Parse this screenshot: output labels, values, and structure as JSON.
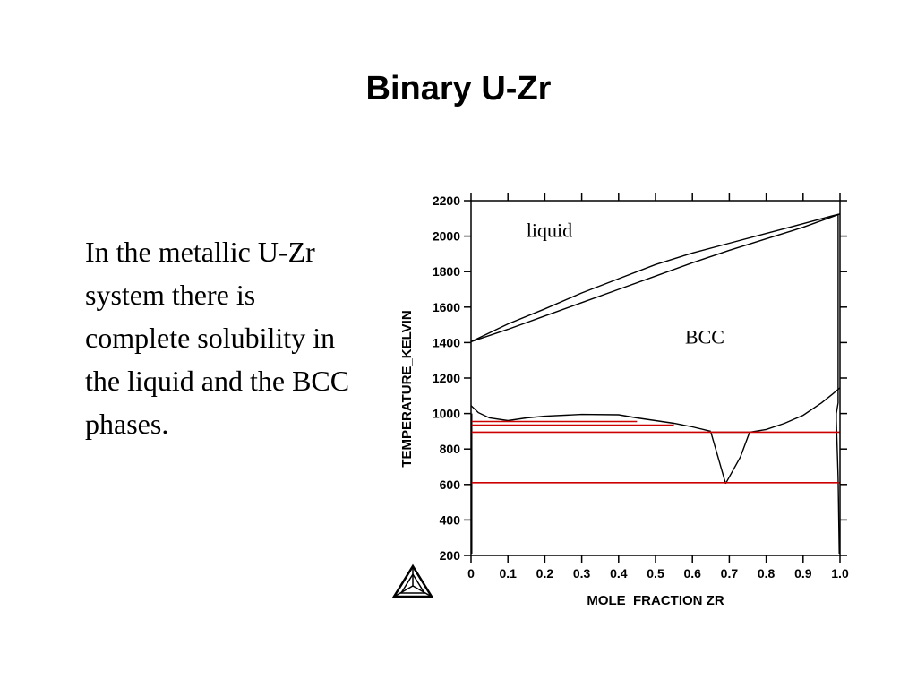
{
  "slide": {
    "title": "Binary U-Zr",
    "body": "In the metallic U-Zr system there is complete solubility in the liquid and the BCC phases."
  },
  "logo": {
    "icon": "thermo-calc-triangle-logo"
  },
  "chart_data": {
    "type": "line",
    "title": "",
    "xlabel": "MOLE_FRACTION ZR",
    "ylabel": "TEMPERATURE_KELVIN",
    "xlim": [
      0,
      1
    ],
    "ylim": [
      200,
      2200
    ],
    "x_ticks": [
      0,
      0.1,
      0.2,
      0.3,
      0.4,
      0.5,
      0.6,
      0.7,
      0.8,
      0.9,
      1.0
    ],
    "x_tick_labels": [
      "0",
      "0.1",
      "0.2",
      "0.3",
      "0.4",
      "0.5",
      "0.6",
      "0.7",
      "0.8",
      "0.9",
      "1.0"
    ],
    "y_ticks": [
      200,
      400,
      600,
      800,
      1000,
      1200,
      1400,
      1600,
      1800,
      2000,
      2200
    ],
    "y_tick_labels": [
      "200",
      "400",
      "600",
      "800",
      "1000",
      "1200",
      "1400",
      "1600",
      "1800",
      "2000",
      "2200"
    ],
    "grid": false,
    "annotations": [
      {
        "text": "liquid",
        "x": 0.15,
        "y": 1995
      },
      {
        "text": "BCC",
        "x": 0.58,
        "y": 1395
      }
    ],
    "series": [
      {
        "color": "#000000",
        "points": [
          [
            0,
            1405
          ],
          [
            0.1,
            1505
          ],
          [
            0.2,
            1590
          ],
          [
            0.3,
            1680
          ],
          [
            0.4,
            1760
          ],
          [
            0.5,
            1840
          ],
          [
            0.6,
            1905
          ],
          [
            0.7,
            1960
          ],
          [
            0.8,
            2015
          ],
          [
            0.9,
            2070
          ],
          [
            0.98,
            2115
          ],
          [
            1.0,
            2125
          ]
        ]
      },
      {
        "color": "#000000",
        "points": [
          [
            0,
            1405
          ],
          [
            0.1,
            1475
          ],
          [
            0.2,
            1550
          ],
          [
            0.3,
            1625
          ],
          [
            0.4,
            1700
          ],
          [
            0.5,
            1775
          ],
          [
            0.6,
            1850
          ],
          [
            0.7,
            1920
          ],
          [
            0.8,
            1985
          ],
          [
            0.9,
            2050
          ],
          [
            0.98,
            2110
          ],
          [
            1.0,
            2125
          ]
        ]
      },
      {
        "color": "#000000",
        "points": [
          [
            0,
            1045
          ],
          [
            0.02,
            1005
          ],
          [
            0.05,
            975
          ],
          [
            0.1,
            960
          ],
          [
            0.15,
            975
          ],
          [
            0.2,
            985
          ],
          [
            0.3,
            995
          ],
          [
            0.4,
            993
          ],
          [
            0.45,
            975
          ],
          [
            0.5,
            960
          ],
          [
            0.55,
            945
          ],
          [
            0.6,
            925
          ],
          [
            0.65,
            900
          ]
        ]
      },
      {
        "color": "#000000",
        "points": [
          [
            0.65,
            895
          ],
          [
            0.69,
            605
          ]
        ]
      },
      {
        "color": "#000000",
        "points": [
          [
            0.69,
            605
          ],
          [
            0.73,
            755
          ],
          [
            0.755,
            895
          ]
        ]
      },
      {
        "color": "#000000",
        "points": [
          [
            0.65,
            895
          ],
          [
            0.755,
            895
          ]
        ]
      },
      {
        "color": "#000000",
        "points": [
          [
            0.755,
            895
          ],
          [
            0.8,
            910
          ],
          [
            0.85,
            945
          ],
          [
            0.9,
            990
          ],
          [
            0.95,
            1060
          ],
          [
            0.98,
            1110
          ],
          [
            1.0,
            1145
          ]
        ]
      },
      {
        "color": "#000000",
        "points": [
          [
            0.995,
            2125
          ],
          [
            0.995,
            1060
          ],
          [
            0.99,
            1000
          ],
          [
            0.99,
            960
          ],
          [
            0.995,
            640
          ],
          [
            0.998,
            210
          ]
        ]
      },
      {
        "color": "#000000",
        "points": [
          [
            0.002,
            1000
          ],
          [
            0.002,
            210
          ]
        ]
      },
      {
        "color": "#cc0000",
        "points": [
          [
            0,
            955
          ],
          [
            0.45,
            955
          ]
        ]
      },
      {
        "color": "#cc0000",
        "points": [
          [
            0,
            935
          ],
          [
            0.55,
            935
          ]
        ]
      },
      {
        "color": "#cc0000",
        "points": [
          [
            0,
            895
          ],
          [
            1.0,
            895
          ]
        ]
      },
      {
        "color": "#cc0000",
        "points": [
          [
            0,
            610
          ],
          [
            1.0,
            610
          ]
        ]
      }
    ]
  }
}
